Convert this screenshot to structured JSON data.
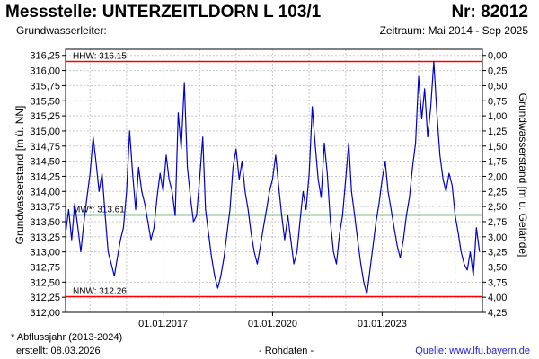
{
  "header": {
    "title": "Messstelle: UNTERZEITLDORN L 103/1",
    "number": "Nr: 82012",
    "aquifer": "Grundwasserleiter:",
    "period": "Zeitraum: Mai 2014 - Sep 2025"
  },
  "footer": {
    "footnote": "* Abflussjahr (2013-2024)",
    "created": "erstellt:  08.03.2026",
    "raw": "- Rohdaten -",
    "source": "Quelle:  www.lfu.bayern.de"
  },
  "colors": {
    "series": "#0000cc",
    "limit": "#ff0000",
    "mean": "#008000",
    "grid": "#c8c8c8"
  },
  "chart_data": {
    "type": "line",
    "ylabel": "Grundwasserstand [m ü. NN]",
    "y2label": "Grundwasserstand [m u. Gelände]",
    "ylim": [
      312.0,
      316.35
    ],
    "y_ticks": [
      "312,00",
      "312,25",
      "312,50",
      "312,75",
      "313,00",
      "313,25",
      "313,50",
      "313,75",
      "314,00",
      "314,25",
      "314,50",
      "314,75",
      "315,00",
      "315,25",
      "315,50",
      "315,75",
      "316,00",
      "316,25"
    ],
    "y2_ticks": [
      "4,25",
      "4,00",
      "3,75",
      "3,50",
      "3,25",
      "3,00",
      "2,75",
      "2,50",
      "2,25",
      "2,00",
      "1,75",
      "1,50",
      "1,25",
      "1,00",
      "0,75",
      "0,50",
      "0,25",
      "0,00"
    ],
    "y2_ref": 316.25,
    "xlim": [
      "2014-05-01",
      "2025-09-30"
    ],
    "x_ticks": [
      {
        "date": "2017-01-01",
        "label": "01.01.2017"
      },
      {
        "date": "2020-01-01",
        "label": "01.01.2020"
      },
      {
        "date": "2023-01-01",
        "label": "01.01.2023"
      }
    ],
    "grid": true,
    "hlines": [
      {
        "name": "HHW",
        "label": "HHW: 316.15",
        "value": 316.15,
        "color": "#ff0000"
      },
      {
        "name": "MW",
        "label": "MW*: 313.61",
        "value": 313.61,
        "color": "#008000"
      },
      {
        "name": "NNW",
        "label": "NNW: 312.26",
        "value": 312.26,
        "color": "#ff0000"
      }
    ],
    "series": [
      {
        "color": "#0000cc",
        "points": [
          [
            "2014-05-01",
            313.3
          ],
          [
            "2014-06-01",
            313.7
          ],
          [
            "2014-07-01",
            313.2
          ],
          [
            "2014-08-01",
            313.8
          ],
          [
            "2014-09-01",
            313.4
          ],
          [
            "2014-10-01",
            313.0
          ],
          [
            "2014-11-01",
            313.5
          ],
          [
            "2014-12-01",
            313.9
          ],
          [
            "2015-01-01",
            314.3
          ],
          [
            "2015-02-01",
            314.9
          ],
          [
            "2015-03-01",
            314.5
          ],
          [
            "2015-04-01",
            314.0
          ],
          [
            "2015-05-01",
            314.3
          ],
          [
            "2015-06-01",
            313.6
          ],
          [
            "2015-07-01",
            313.0
          ],
          [
            "2015-08-01",
            312.8
          ],
          [
            "2015-09-01",
            312.6
          ],
          [
            "2015-10-01",
            312.9
          ],
          [
            "2015-11-01",
            313.2
          ],
          [
            "2015-12-01",
            313.4
          ],
          [
            "2016-01-01",
            314.0
          ],
          [
            "2016-02-01",
            315.0
          ],
          [
            "2016-03-01",
            314.3
          ],
          [
            "2016-04-01",
            313.7
          ],
          [
            "2016-05-01",
            314.4
          ],
          [
            "2016-06-01",
            314.0
          ],
          [
            "2016-07-01",
            313.8
          ],
          [
            "2016-08-01",
            313.5
          ],
          [
            "2016-09-01",
            313.2
          ],
          [
            "2016-10-01",
            313.4
          ],
          [
            "2016-11-01",
            313.9
          ],
          [
            "2016-12-01",
            314.3
          ],
          [
            "2017-01-01",
            314.0
          ],
          [
            "2017-02-01",
            314.6
          ],
          [
            "2017-03-01",
            314.2
          ],
          [
            "2017-04-01",
            314.0
          ],
          [
            "2017-05-01",
            313.6
          ],
          [
            "2017-06-01",
            315.3
          ],
          [
            "2017-07-01",
            314.7
          ],
          [
            "2017-08-01",
            315.8
          ],
          [
            "2017-09-01",
            314.4
          ],
          [
            "2017-10-01",
            313.9
          ],
          [
            "2017-11-01",
            313.5
          ],
          [
            "2017-12-01",
            313.6
          ],
          [
            "2018-01-01",
            314.2
          ],
          [
            "2018-02-01",
            314.9
          ],
          [
            "2018-03-01",
            313.7
          ],
          [
            "2018-04-01",
            313.3
          ],
          [
            "2018-05-01",
            312.9
          ],
          [
            "2018-06-01",
            312.6
          ],
          [
            "2018-07-01",
            312.4
          ],
          [
            "2018-08-01",
            312.6
          ],
          [
            "2018-09-01",
            312.9
          ],
          [
            "2018-10-01",
            313.3
          ],
          [
            "2018-11-01",
            313.7
          ],
          [
            "2018-12-01",
            314.4
          ],
          [
            "2019-01-01",
            314.7
          ],
          [
            "2019-02-01",
            314.2
          ],
          [
            "2019-03-01",
            314.5
          ],
          [
            "2019-04-01",
            314.0
          ],
          [
            "2019-05-01",
            313.7
          ],
          [
            "2019-06-01",
            313.3
          ],
          [
            "2019-07-01",
            313.0
          ],
          [
            "2019-08-01",
            312.8
          ],
          [
            "2019-09-01",
            313.1
          ],
          [
            "2019-10-01",
            313.4
          ],
          [
            "2019-11-01",
            313.7
          ],
          [
            "2019-12-01",
            314.0
          ],
          [
            "2020-01-01",
            314.2
          ],
          [
            "2020-02-01",
            314.6
          ],
          [
            "2020-03-01",
            314.1
          ],
          [
            "2020-04-01",
            313.6
          ],
          [
            "2020-05-01",
            313.2
          ],
          [
            "2020-06-01",
            313.6
          ],
          [
            "2020-07-01",
            313.2
          ],
          [
            "2020-08-01",
            312.8
          ],
          [
            "2020-09-01",
            313.0
          ],
          [
            "2020-10-01",
            313.5
          ],
          [
            "2020-11-01",
            314.0
          ],
          [
            "2020-12-01",
            313.7
          ],
          [
            "2021-01-01",
            314.3
          ],
          [
            "2021-02-01",
            315.4
          ],
          [
            "2021-03-01",
            314.8
          ],
          [
            "2021-04-01",
            314.2
          ],
          [
            "2021-05-01",
            313.9
          ],
          [
            "2021-06-01",
            314.8
          ],
          [
            "2021-07-01",
            314.3
          ],
          [
            "2021-08-01",
            313.5
          ],
          [
            "2021-09-01",
            313.0
          ],
          [
            "2021-10-01",
            312.8
          ],
          [
            "2021-11-01",
            313.3
          ],
          [
            "2021-12-01",
            313.6
          ],
          [
            "2022-01-01",
            314.2
          ],
          [
            "2022-02-01",
            314.8
          ],
          [
            "2022-03-01",
            314.0
          ],
          [
            "2022-04-01",
            313.6
          ],
          [
            "2022-05-01",
            313.2
          ],
          [
            "2022-06-01",
            312.8
          ],
          [
            "2022-07-01",
            312.5
          ],
          [
            "2022-08-01",
            312.3
          ],
          [
            "2022-09-01",
            312.7
          ],
          [
            "2022-10-01",
            313.1
          ],
          [
            "2022-11-01",
            313.5
          ],
          [
            "2022-12-01",
            313.8
          ],
          [
            "2023-01-01",
            314.2
          ],
          [
            "2023-02-01",
            314.5
          ],
          [
            "2023-03-01",
            314.0
          ],
          [
            "2023-04-01",
            313.7
          ],
          [
            "2023-05-01",
            313.4
          ],
          [
            "2023-06-01",
            313.1
          ],
          [
            "2023-07-01",
            312.9
          ],
          [
            "2023-08-01",
            313.2
          ],
          [
            "2023-09-01",
            313.6
          ],
          [
            "2023-10-01",
            313.9
          ],
          [
            "2023-11-01",
            314.4
          ],
          [
            "2023-12-01",
            314.8
          ],
          [
            "2024-01-01",
            315.9
          ],
          [
            "2024-02-01",
            315.2
          ],
          [
            "2024-03-01",
            315.7
          ],
          [
            "2024-04-01",
            314.9
          ],
          [
            "2024-05-01",
            315.4
          ],
          [
            "2024-06-01",
            316.15
          ],
          [
            "2024-07-01",
            315.3
          ],
          [
            "2024-08-01",
            314.6
          ],
          [
            "2024-09-01",
            314.2
          ],
          [
            "2024-10-01",
            314.0
          ],
          [
            "2024-11-01",
            314.3
          ],
          [
            "2024-12-01",
            314.1
          ],
          [
            "2025-01-01",
            313.6
          ],
          [
            "2025-02-01",
            313.3
          ],
          [
            "2025-03-01",
            313.0
          ],
          [
            "2025-04-01",
            312.8
          ],
          [
            "2025-05-01",
            312.7
          ],
          [
            "2025-06-01",
            313.0
          ],
          [
            "2025-07-01",
            312.6
          ],
          [
            "2025-08-01",
            313.4
          ],
          [
            "2025-09-01",
            313.0
          ]
        ]
      }
    ]
  }
}
